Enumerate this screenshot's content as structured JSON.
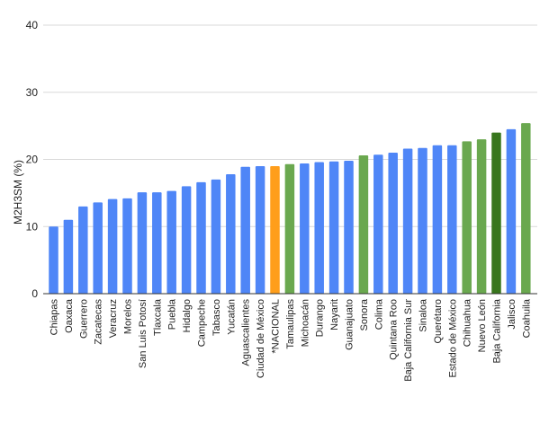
{
  "chart_data": {
    "type": "bar",
    "title": "",
    "xlabel": "",
    "ylabel": "M2H3SM (%)",
    "ylim": [
      0,
      40
    ],
    "yticks": [
      0,
      10,
      20,
      30,
      40
    ],
    "grid": true,
    "categories": [
      "Chiapas",
      "Oaxaca",
      "Guerrero",
      "Zacatecas",
      "Veracruz",
      "Morelos",
      "San Luis Potosí",
      "Tlaxcala",
      "Puebla",
      "Hidalgo",
      "Campeche",
      "Tabasco",
      "Yucatán",
      "Aguascalientes",
      "Ciudad de México",
      "*NACIONAL",
      "Tamaulipas",
      "Michoacán",
      "Durango",
      "Nayarit",
      "Guanajuato",
      "Sonora",
      "Colima",
      "Quintana Roo",
      "Baja California Sur",
      "Sinaloa",
      "Querétaro",
      "Estado de México",
      "Chihuahua",
      "Nuevo León",
      "Baja California",
      "Jalisco",
      "Coahuila"
    ],
    "values": [
      10.0,
      11.0,
      13.0,
      13.6,
      14.1,
      14.2,
      15.1,
      15.1,
      15.3,
      16.0,
      16.6,
      17.0,
      17.8,
      18.9,
      19.0,
      19.0,
      19.3,
      19.4,
      19.6,
      19.7,
      19.8,
      20.6,
      20.7,
      21.0,
      21.6,
      21.7,
      22.1,
      22.1,
      22.7,
      23.0,
      24.0,
      24.5,
      25.4
    ],
    "colors": [
      "#4f86f7",
      "#4f86f7",
      "#4f86f7",
      "#4f86f7",
      "#4f86f7",
      "#4f86f7",
      "#4f86f7",
      "#4f86f7",
      "#4f86f7",
      "#4f86f7",
      "#4f86f7",
      "#4f86f7",
      "#4f86f7",
      "#4f86f7",
      "#4f86f7",
      "#ff9e1b",
      "#6aa84f",
      "#4f86f7",
      "#4f86f7",
      "#4f86f7",
      "#4f86f7",
      "#6aa84f",
      "#4f86f7",
      "#4f86f7",
      "#4f86f7",
      "#4f86f7",
      "#4f86f7",
      "#4f86f7",
      "#6aa84f",
      "#6aa84f",
      "#38761d",
      "#4f86f7",
      "#6aa84f"
    ],
    "legend": "none"
  }
}
